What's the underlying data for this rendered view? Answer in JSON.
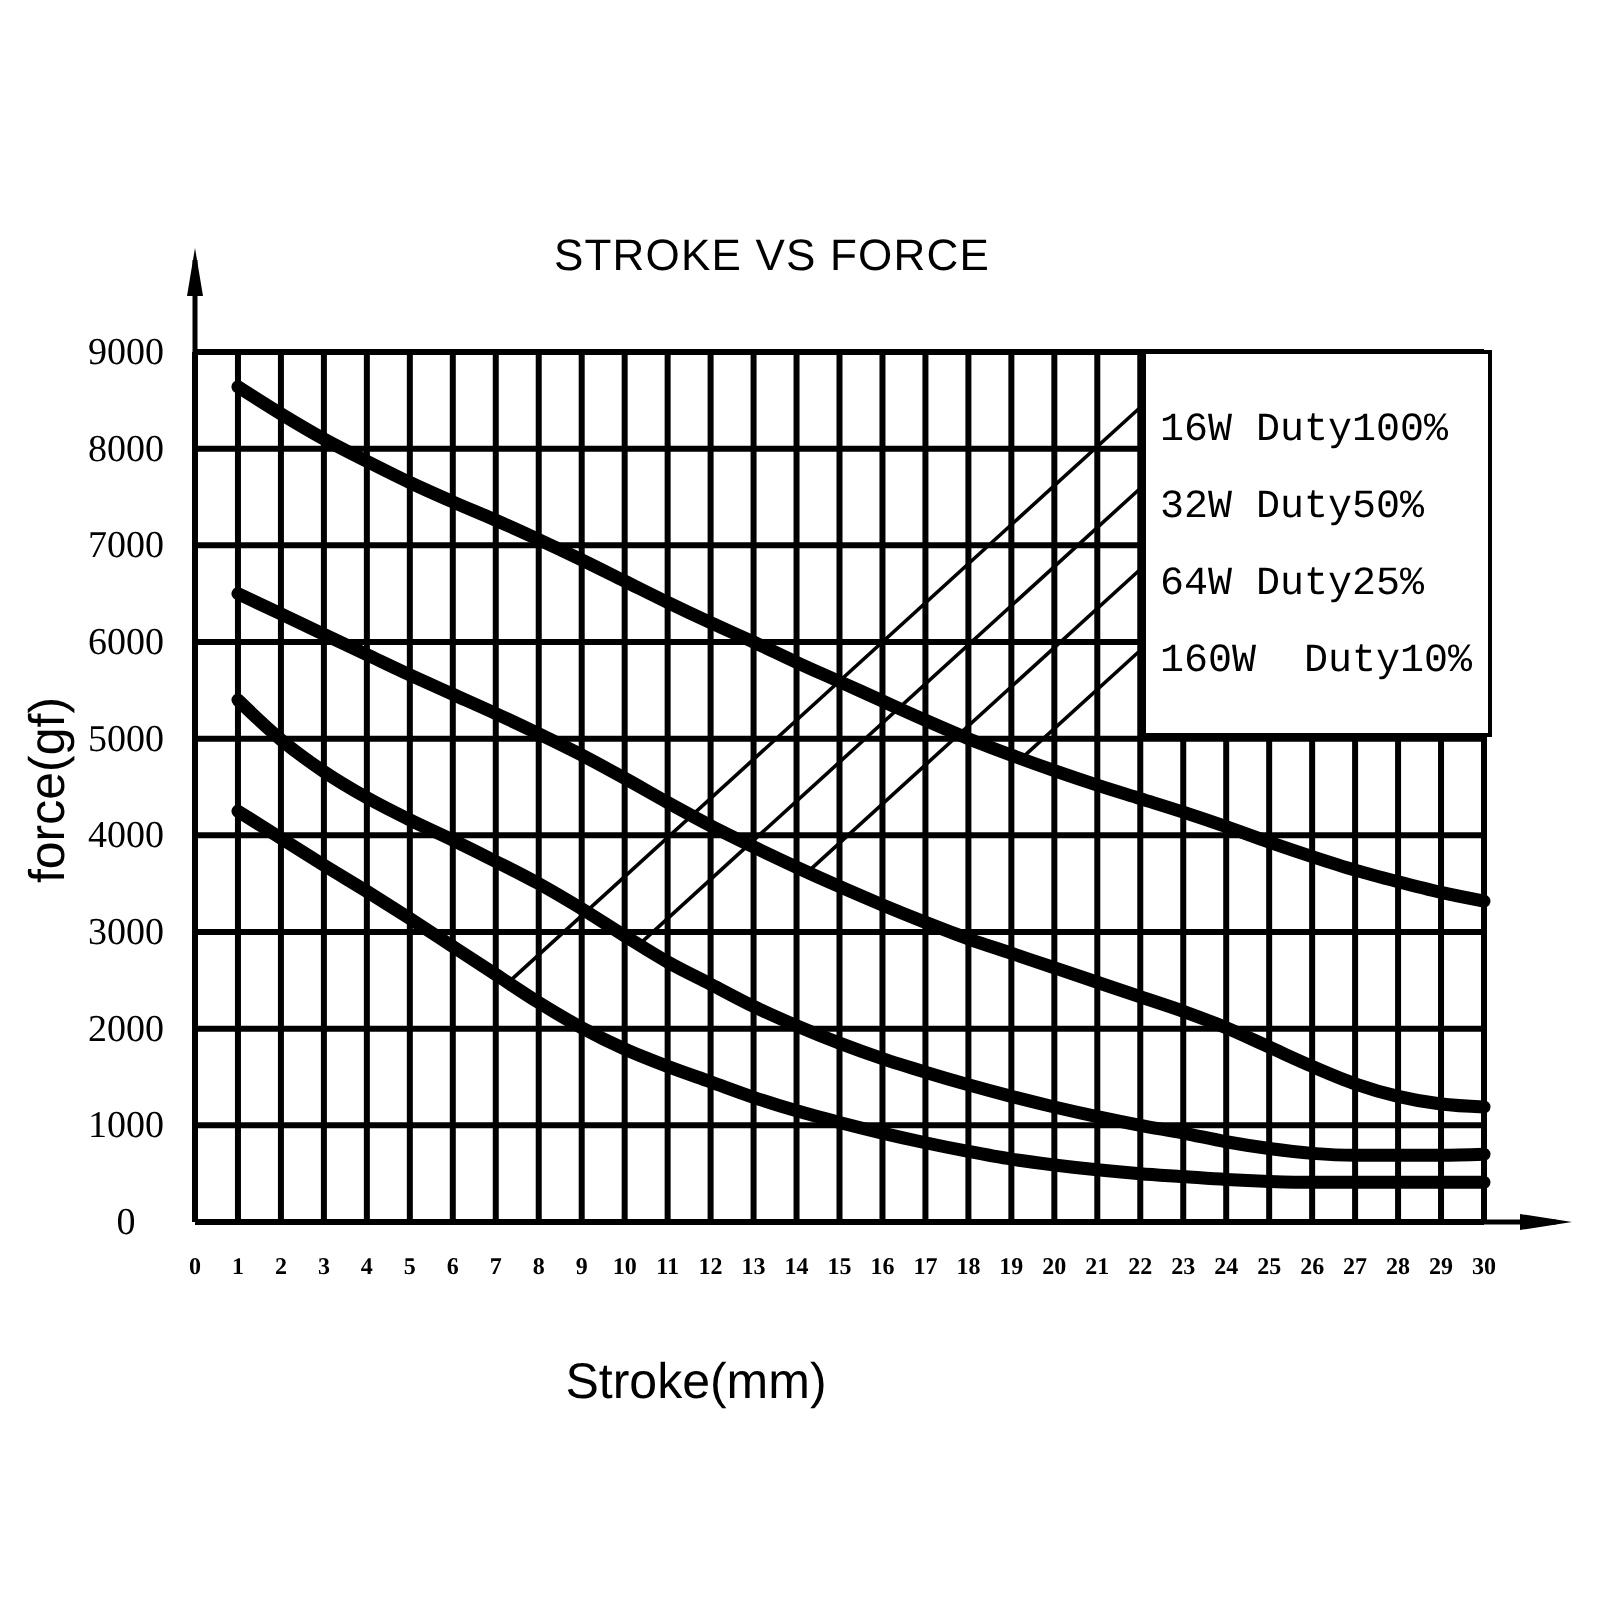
{
  "chart_data": {
    "type": "line",
    "title": "STROKE VS FORCE",
    "xlabel": "Stroke(mm)",
    "ylabel": "force(gf)",
    "x": [
      1,
      2,
      3,
      4,
      5,
      6,
      7,
      8,
      9,
      10,
      11,
      12,
      13,
      14,
      15,
      16,
      17,
      18,
      19,
      20,
      21,
      22,
      23,
      24,
      25,
      26,
      27,
      28,
      29,
      30
    ],
    "series": [
      {
        "name": "16W Duty100%",
        "color": "#000000",
        "values": [
          4250,
          3970,
          3690,
          3420,
          3140,
          2850,
          2560,
          2270,
          2010,
          1790,
          1610,
          1450,
          1290,
          1150,
          1030,
          920,
          820,
          730,
          650,
          590,
          540,
          500,
          470,
          440,
          420,
          410,
          410,
          410,
          410,
          410
        ]
      },
      {
        "name": "32W Duty50%",
        "color": "#000000",
        "values": [
          5400,
          4990,
          4660,
          4390,
          4160,
          3950,
          3730,
          3500,
          3240,
          2960,
          2690,
          2460,
          2230,
          2030,
          1850,
          1690,
          1550,
          1420,
          1300,
          1190,
          1090,
          1000,
          920,
          830,
          760,
          710,
          690,
          690,
          690,
          700
        ]
      },
      {
        "name": "64W Duty25%",
        "color": "#000000",
        "values": [
          6500,
          6290,
          6080,
          5870,
          5660,
          5460,
          5260,
          5050,
          4830,
          4590,
          4340,
          4100,
          3880,
          3670,
          3470,
          3280,
          3100,
          2930,
          2780,
          2630,
          2480,
          2330,
          2180,
          2010,
          1810,
          1610,
          1430,
          1300,
          1220,
          1190
        ]
      },
      {
        "name": "160W  Duty10%",
        "color": "#000000",
        "values": [
          8640,
          8360,
          8100,
          7870,
          7650,
          7450,
          7260,
          7060,
          6850,
          6630,
          6410,
          6200,
          6000,
          5790,
          5590,
          5390,
          5190,
          5000,
          4830,
          4670,
          4520,
          4380,
          4240,
          4090,
          3930,
          3780,
          3640,
          3520,
          3410,
          3320
        ]
      }
    ],
    "xlim": [
      0,
      30
    ],
    "xticks": [
      0,
      1,
      2,
      3,
      4,
      5,
      6,
      7,
      8,
      9,
      10,
      11,
      12,
      13,
      14,
      15,
      16,
      17,
      18,
      19,
      20,
      21,
      22,
      23,
      24,
      25,
      26,
      27,
      28,
      29,
      30
    ],
    "ylim": [
      0,
      9000
    ],
    "yticks": [
      0,
      1000,
      2000,
      3000,
      4000,
      5000,
      6000,
      7000,
      8000,
      9000
    ],
    "grid": true,
    "legend": "top right",
    "line_style": "solid"
  }
}
